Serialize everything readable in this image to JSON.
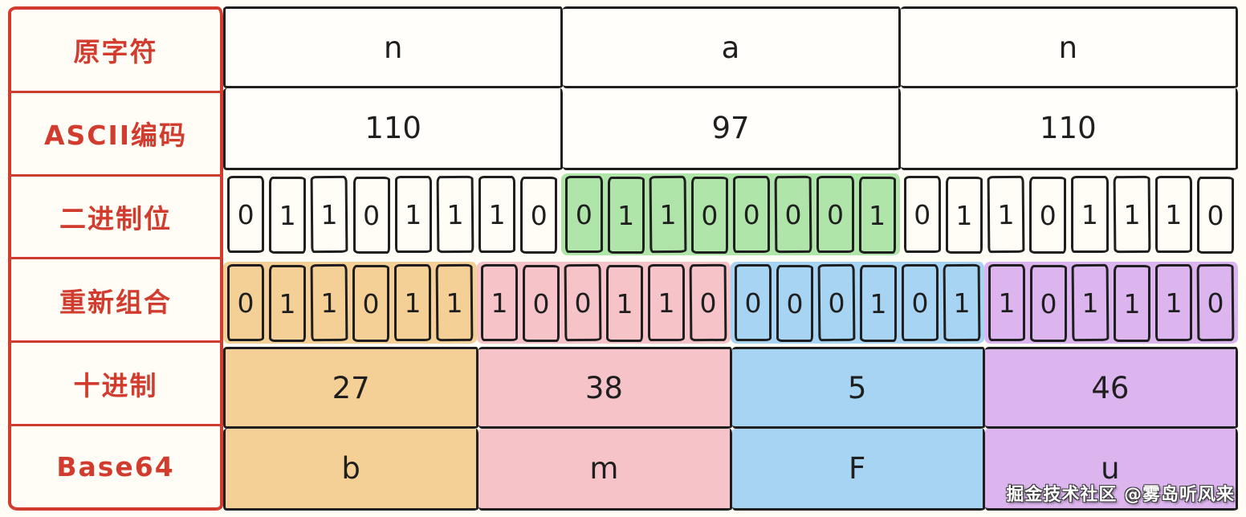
{
  "labels": {
    "source_char": "原字符",
    "ascii": "ASCII编码",
    "binary_bits": "二进制位",
    "regroup": "重新组合",
    "decimal": "十进制",
    "base64": "Base64"
  },
  "chars": [
    "n",
    "a",
    "n"
  ],
  "ascii_codes": [
    "110",
    "97",
    "110"
  ],
  "binary_groups": [
    {
      "color_name": "white",
      "bits": [
        "0",
        "1",
        "1",
        "0",
        "1",
        "1",
        "1",
        "0"
      ]
    },
    {
      "color_name": "green",
      "bits": [
        "0",
        "1",
        "1",
        "0",
        "0",
        "0",
        "0",
        "1"
      ]
    },
    {
      "color_name": "white",
      "bits": [
        "0",
        "1",
        "1",
        "0",
        "1",
        "1",
        "1",
        "0"
      ]
    }
  ],
  "regroup_groups": [
    {
      "color_name": "orange",
      "bits": [
        "0",
        "1",
        "1",
        "0",
        "1",
        "1"
      ]
    },
    {
      "color_name": "pink",
      "bits": [
        "1",
        "0",
        "0",
        "1",
        "1",
        "0"
      ]
    },
    {
      "color_name": "blue",
      "bits": [
        "0",
        "0",
        "0",
        "1",
        "0",
        "1"
      ]
    },
    {
      "color_name": "purple",
      "bits": [
        "1",
        "0",
        "1",
        "1",
        "1",
        "0"
      ]
    }
  ],
  "decimal_values": [
    {
      "color_name": "orange",
      "value": "27"
    },
    {
      "color_name": "pink",
      "value": "38"
    },
    {
      "color_name": "blue",
      "value": "5"
    },
    {
      "color_name": "purple",
      "value": "46"
    }
  ],
  "base64_chars": [
    {
      "color_name": "orange",
      "value": "b"
    },
    {
      "color_name": "pink",
      "value": "m"
    },
    {
      "color_name": "blue",
      "value": "F"
    },
    {
      "color_name": "purple",
      "value": "u"
    }
  ],
  "colors": {
    "red": "#d23c2f",
    "ink": "#1f1f1f",
    "green": "#b0e5a9",
    "orange": "#f5d096",
    "pink": "#f6c3c8",
    "blue": "#a6d4f2",
    "purple": "#dcb4ee"
  },
  "watermark": "掘金技术社区 @雾岛听风来"
}
